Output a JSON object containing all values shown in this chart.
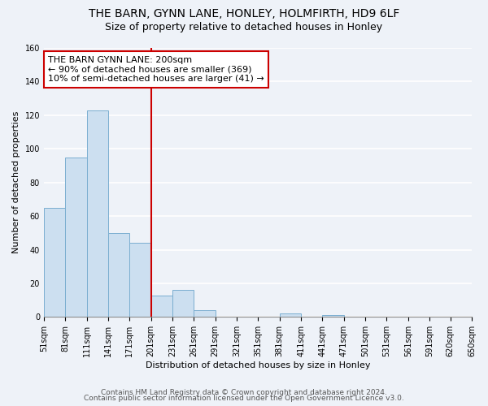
{
  "title": "THE BARN, GYNN LANE, HONLEY, HOLMFIRTH, HD9 6LF",
  "subtitle": "Size of property relative to detached houses in Honley",
  "xlabel": "Distribution of detached houses by size in Honley",
  "ylabel": "Number of detached properties",
  "bar_edges": [
    51,
    81,
    111,
    141,
    171,
    201,
    231,
    261,
    291,
    321,
    351,
    381,
    411,
    441,
    471,
    501,
    531,
    561,
    591,
    620,
    650
  ],
  "bar_heights": [
    65,
    95,
    123,
    50,
    44,
    13,
    16,
    4,
    0,
    0,
    0,
    2,
    0,
    1,
    0,
    0,
    0,
    0,
    0,
    0
  ],
  "bar_color": "#ccdff0",
  "bar_edge_color": "#7aaed0",
  "vline_x": 201,
  "vline_color": "#cc0000",
  "annotation_text": "THE BARN GYNN LANE: 200sqm\n← 90% of detached houses are smaller (369)\n10% of semi-detached houses are larger (41) →",
  "annotation_box_color": "white",
  "annotation_box_edge_color": "#cc0000",
  "ylim": [
    0,
    160
  ],
  "yticks": [
    0,
    20,
    40,
    60,
    80,
    100,
    120,
    140,
    160
  ],
  "tick_labels": [
    "51sqm",
    "81sqm",
    "111sqm",
    "141sqm",
    "171sqm",
    "201sqm",
    "231sqm",
    "261sqm",
    "291sqm",
    "321sqm",
    "351sqm",
    "381sqm",
    "411sqm",
    "441sqm",
    "471sqm",
    "501sqm",
    "531sqm",
    "561sqm",
    "591sqm",
    "620sqm",
    "650sqm"
  ],
  "footer_line1": "Contains HM Land Registry data © Crown copyright and database right 2024.",
  "footer_line2": "Contains public sector information licensed under the Open Government Licence v3.0.",
  "bg_color": "#eef2f8",
  "plot_bg_color": "#eef2f8",
  "grid_color": "#ffffff",
  "title_fontsize": 10,
  "subtitle_fontsize": 9,
  "axis_label_fontsize": 8,
  "tick_fontsize": 7,
  "footer_fontsize": 6.5,
  "annotation_fontsize": 8
}
